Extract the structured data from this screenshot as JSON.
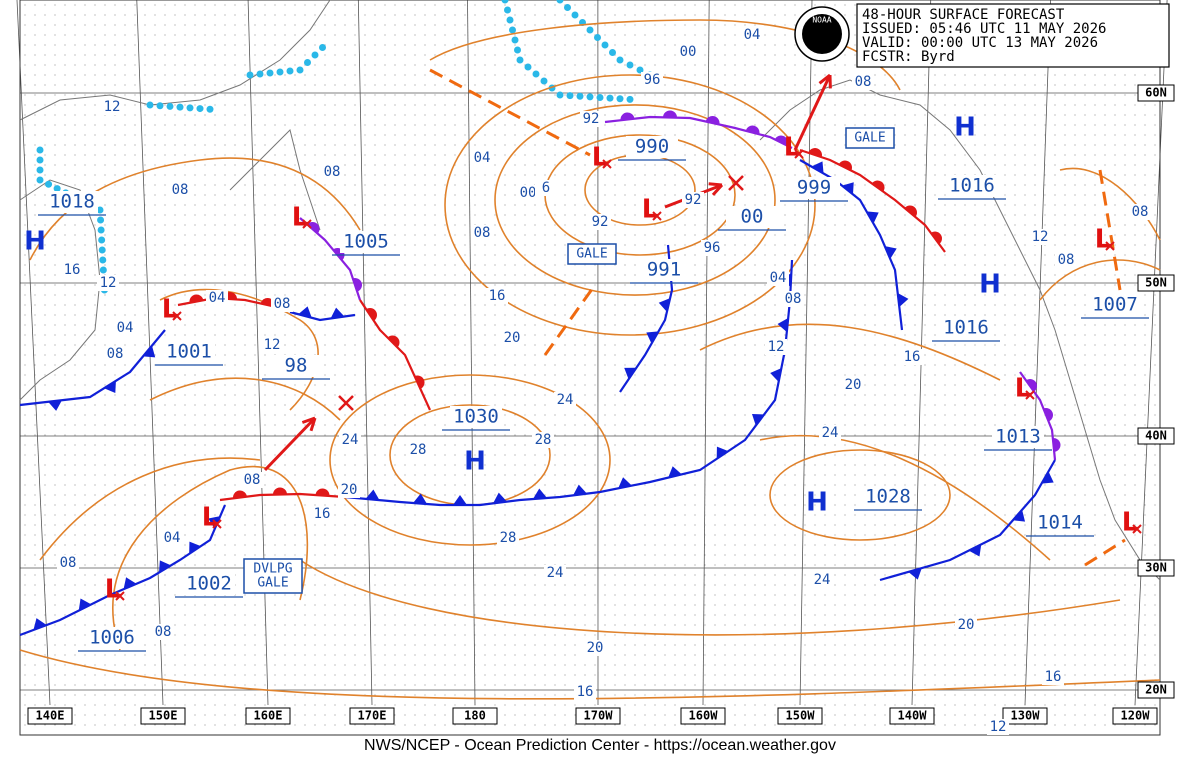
{
  "header": {
    "lines": [
      "48-HOUR SURFACE FORECAST",
      "ISSUED: 05:46 UTC 11 MAY 2026",
      "VALID:  00:00 UTC 13 MAY 2026",
      "FCSTR:  Byrd"
    ],
    "logo": "NOAA"
  },
  "longitudes": [
    "140E",
    "150E",
    "160E",
    "170E",
    "180",
    "170W",
    "160W",
    "150W",
    "140W",
    "130W",
    "120W"
  ],
  "latitudes": [
    "60N",
    "50N",
    "40N",
    "30N",
    "20N"
  ],
  "highs": [
    "H",
    "H",
    "H",
    "H",
    "H"
  ],
  "lows": [
    "L",
    "L",
    "L",
    "L",
    "L",
    "L",
    "L",
    "L",
    "L",
    "L"
  ],
  "pressures": [
    "1018",
    "1005",
    "1001",
    "98",
    "1030",
    "990",
    "999",
    "991",
    "00",
    "1016",
    "1016",
    "1007",
    "1013",
    "1028",
    "1014",
    "1002",
    "1006"
  ],
  "isobar_labels": [
    "12",
    "08",
    "16",
    "12",
    "04",
    "08",
    "04",
    "08",
    "12",
    "08",
    "04",
    "00",
    "6",
    "08",
    "16",
    "20",
    "24",
    "28",
    "24",
    "28",
    "20",
    "16",
    "08",
    "04",
    "08",
    "08",
    "28",
    "24",
    "20",
    "16",
    "12",
    "16",
    "20",
    "24",
    "24",
    "20",
    "16",
    "12",
    "08",
    "04",
    "96",
    "92",
    "92",
    "92",
    "96",
    "00",
    "04",
    "08",
    "08",
    "12",
    "08"
  ],
  "warnings": [
    "GALE",
    "GALE"
  ],
  "developing_warning": [
    "DVLPG",
    "GALE"
  ],
  "footer": "NWS/NCEP - Ocean Prediction Center - https://ocean.weather.gov"
}
